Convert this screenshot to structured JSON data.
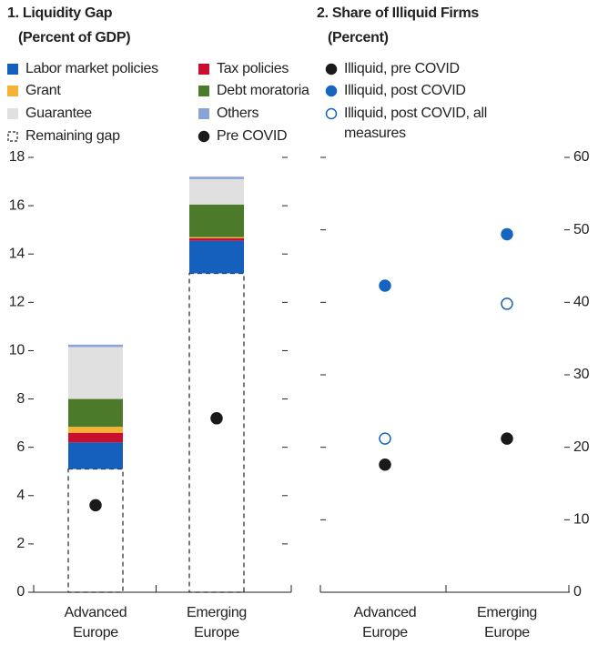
{
  "chart_data": [
    {
      "type": "bar",
      "stacked": true,
      "title": "1. Liquidity Gap",
      "subtitle": "(Percent of GDP)",
      "categories": [
        "Advanced Europe",
        "Emerging Europe"
      ],
      "series": [
        {
          "name": "Remaining gap",
          "color": "#222222",
          "dashed": true,
          "values": [
            5.1,
            13.2
          ]
        },
        {
          "name": "Labor market policies",
          "color": "#1560bd",
          "values": [
            1.1,
            1.35
          ]
        },
        {
          "name": "Tax policies",
          "color": "#c8102e",
          "values": [
            0.4,
            0.1
          ]
        },
        {
          "name": "Grant",
          "color": "#f5b335",
          "values": [
            0.25,
            0.05
          ]
        },
        {
          "name": "Debt moratoria",
          "color": "#4a7a2a",
          "values": [
            1.15,
            1.35
          ]
        },
        {
          "name": "Guarantee",
          "color": "#e0e0e0",
          "values": [
            2.15,
            1.05
          ]
        },
        {
          "name": "Others",
          "color": "#8aa4d6",
          "values": [
            0.1,
            0.1
          ]
        },
        {
          "name": "Pre COVID",
          "color": "#1a1a1a",
          "type": "scatter",
          "values": [
            3.6,
            7.2
          ]
        }
      ],
      "ylim": [
        0,
        18
      ],
      "yticks": [
        0,
        2,
        4,
        6,
        8,
        10,
        12,
        14,
        16,
        18
      ],
      "ytick_side": "left"
    },
    {
      "type": "scatter",
      "title": "2. Share of Illiquid Firms",
      "subtitle": "(Percent)",
      "categories": [
        "Advanced Europe",
        "Emerging Europe"
      ],
      "series": [
        {
          "name": "Illiquid, pre COVID",
          "color": "#1a1a1a",
          "values": [
            17.6,
            21.2
          ]
        },
        {
          "name": "Illiquid, post COVID",
          "color": "#1565c0",
          "values": [
            42.3,
            49.4
          ]
        },
        {
          "name": "Illiquid, post COVID, all measures",
          "color": "#1565c0",
          "hollow": true,
          "values": [
            21.2,
            39.8
          ]
        }
      ],
      "ylim": [
        0,
        60
      ],
      "yticks": [
        0,
        10,
        20,
        30,
        40,
        50,
        60
      ],
      "ytick_side": "right"
    }
  ]
}
